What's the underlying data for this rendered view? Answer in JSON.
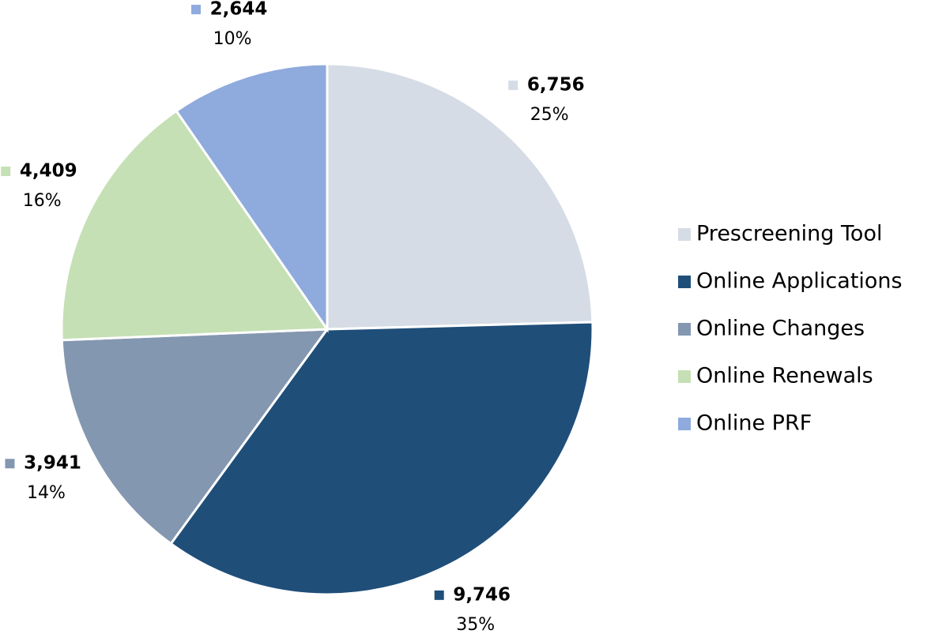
{
  "chart_data": {
    "type": "pie",
    "categories": [
      "Prescreening Tool",
      "Online Applications",
      "Online Changes",
      "Online Renewals",
      "Online PRF"
    ],
    "values": [
      6756,
      9746,
      3941,
      4409,
      2644
    ],
    "value_labels": [
      "6,756",
      "9,746",
      "3,941",
      "4,409",
      "2,644"
    ],
    "percent_labels": [
      "25%",
      "35%",
      "14%",
      "16%",
      "10%"
    ],
    "colors": [
      "#d6dce5",
      "#1f4e79",
      "#8497b0",
      "#c5e0b4",
      "#8faadc"
    ],
    "legend": "right"
  }
}
